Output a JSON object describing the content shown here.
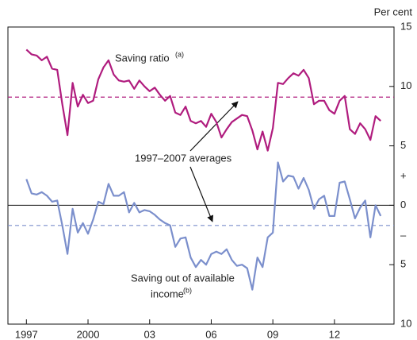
{
  "chart_data": {
    "type": "line",
    "unit_label": "Per cent",
    "x": [
      1997.0,
      1997.25,
      1997.5,
      1997.75,
      1998.0,
      1998.25,
      1998.5,
      1998.75,
      1999.0,
      1999.25,
      1999.5,
      1999.75,
      2000.0,
      2000.25,
      2000.5,
      2000.75,
      2001.0,
      2001.25,
      2001.5,
      2001.75,
      2002.0,
      2002.25,
      2002.5,
      2002.75,
      2003.0,
      2003.25,
      2003.5,
      2003.75,
      2004.0,
      2004.25,
      2004.5,
      2004.75,
      2005.0,
      2005.25,
      2005.5,
      2005.75,
      2006.0,
      2006.25,
      2006.5,
      2006.75,
      2007.0,
      2007.25,
      2007.5,
      2007.75,
      2008.0,
      2008.25,
      2008.5,
      2008.75,
      2009.0,
      2009.25,
      2009.5,
      2009.75,
      2010.0,
      2010.25,
      2010.5,
      2010.75,
      2011.0,
      2011.25,
      2011.5,
      2011.75,
      2012.0,
      2012.25,
      2012.5,
      2012.75,
      2013.0,
      2013.25,
      2013.5,
      2013.75,
      2014.0,
      2014.25
    ],
    "series": [
      {
        "color": "#b01c7e",
        "values": [
          13.1,
          12.7,
          12.6,
          12.2,
          12.5,
          11.5,
          11.4,
          8.5,
          5.9,
          10.3,
          8.3,
          9.3,
          8.6,
          8.8,
          10.6,
          11.6,
          12.2,
          11.0,
          10.5,
          10.4,
          10.5,
          9.8,
          10.5,
          10.0,
          9.6,
          9.9,
          9.3,
          8.8,
          9.2,
          7.8,
          7.6,
          8.3,
          7.1,
          6.9,
          7.1,
          6.6,
          7.7,
          7.0,
          5.7,
          6.4,
          7.0,
          7.3,
          7.6,
          7.5,
          6.3,
          4.7,
          6.2,
          4.6,
          6.5,
          10.3,
          10.2,
          10.7,
          11.1,
          10.9,
          11.4,
          10.7,
          8.5,
          8.8,
          8.8,
          8.0,
          7.7,
          8.8,
          9.2,
          6.4,
          6.0,
          6.9,
          6.4,
          5.5,
          7.5,
          7.1
        ]
      },
      {
        "color": "#7b8fcc",
        "values": [
          2.2,
          1.0,
          0.9,
          1.1,
          0.8,
          0.3,
          0.4,
          -1.7,
          -4.1,
          -0.3,
          -2.3,
          -1.5,
          -2.4,
          -1.2,
          0.3,
          0.1,
          1.8,
          0.8,
          0.8,
          1.1,
          -0.6,
          0.2,
          -0.6,
          -0.4,
          -0.5,
          -0.8,
          -1.2,
          -1.5,
          -1.7,
          -3.5,
          -2.8,
          -2.7,
          -4.4,
          -5.2,
          -4.6,
          -5.0,
          -4.1,
          -3.9,
          -4.1,
          -3.7,
          -4.6,
          -5.1,
          -5.0,
          -5.3,
          -7.1,
          -4.4,
          -5.2,
          -2.7,
          -2.3,
          3.6,
          2.0,
          2.5,
          2.4,
          1.4,
          2.3,
          1.3,
          -0.3,
          0.5,
          0.8,
          -0.9,
          -0.9,
          1.9,
          2.0,
          0.5,
          -1.1,
          -0.2,
          0.4,
          -2.7,
          0.0,
          -0.9
        ]
      }
    ],
    "averages": [
      {
        "value": 9.1,
        "color": "#b01c7e"
      },
      {
        "value": -1.7,
        "color": "#7b8fcc"
      }
    ],
    "annotations": {
      "saving_ratio": "Saving ratio",
      "saving_ratio_note": "(a)",
      "averages": "1997–2007 averages",
      "income_line1": "Saving out of available",
      "income_line2": "income",
      "income_note": "(b)",
      "plus": "+",
      "minus": "–"
    },
    "xlim": [
      1996.1,
      2014.9
    ],
    "xticks": [
      1997,
      2000,
      {
        "value": 2003,
        "label": "03"
      },
      {
        "value": 2006,
        "label": "06"
      },
      {
        "value": 2009,
        "label": "09"
      },
      {
        "value": 2012,
        "label": "12"
      }
    ],
    "ylim": [
      -10,
      15
    ],
    "yticks": [
      15,
      10,
      5,
      0,
      {
        "value": -5,
        "label": "5"
      },
      {
        "value": -10,
        "label": "10"
      }
    ]
  }
}
